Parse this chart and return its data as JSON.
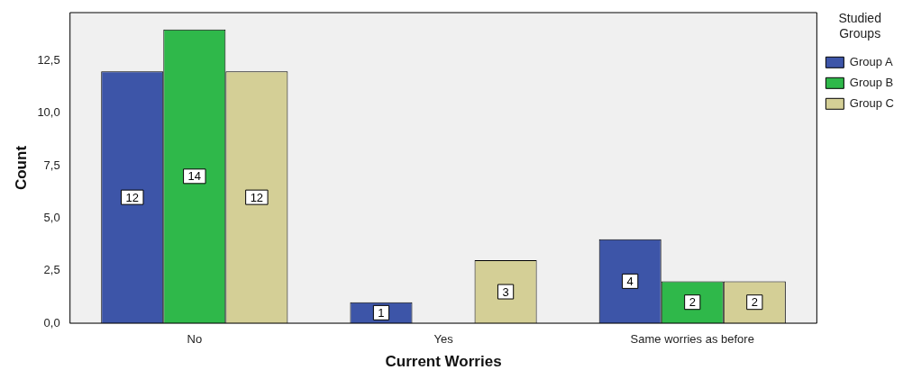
{
  "chart_data": {
    "type": "bar",
    "xlabel": "Current Worries",
    "ylabel": "Count",
    "legend_title": "Studied Groups",
    "categories": [
      "No",
      "Yes",
      "Same worries as before"
    ],
    "series": [
      {
        "name": "Group A",
        "color": "#3d55a8",
        "values": [
          12,
          1,
          4
        ],
        "value_labels": [
          "12",
          "1",
          "4"
        ]
      },
      {
        "name": "Group B",
        "color": "#2fb84a",
        "values": [
          14,
          0,
          2
        ],
        "value_labels": [
          "14",
          null,
          "2"
        ]
      },
      {
        "name": "Group C",
        "color": "#d4cf96",
        "values": [
          12,
          3,
          2
        ],
        "value_labels": [
          "12",
          "3",
          "2"
        ]
      }
    ],
    "ylim": [
      0,
      14.8
    ],
    "yticks": [
      {
        "value": 0,
        "label": "0,0"
      },
      {
        "value": 2.5,
        "label": "2,5"
      },
      {
        "value": 5,
        "label": "5,0"
      },
      {
        "value": 7.5,
        "label": "7,5"
      },
      {
        "value": 10,
        "label": "10,0"
      },
      {
        "value": 12.5,
        "label": "12,5"
      }
    ],
    "grid": false,
    "legend": "top right"
  }
}
